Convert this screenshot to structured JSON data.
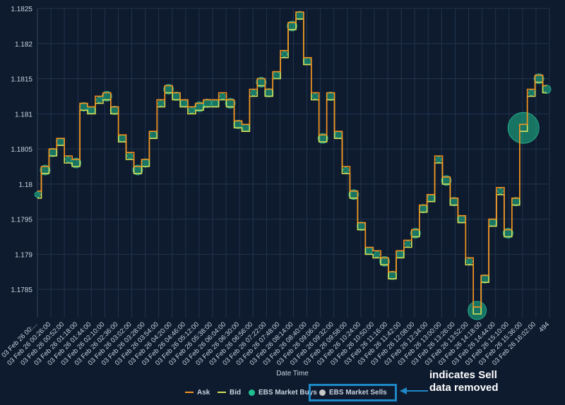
{
  "chart_data": {
    "type": "line",
    "title": "",
    "xlabel": "Date Time",
    "ylabel": "",
    "ylim": [
      1.1781,
      1.1825
    ],
    "yticks": [
      "1.1825",
      "1.182",
      "1.1815",
      "1.181",
      "1.1805",
      "1.18",
      "1.1795",
      "1.179",
      "1.1785"
    ],
    "ytick_values": [
      1.1825,
      1.182,
      1.1815,
      1.181,
      1.1805,
      1.18,
      1.1795,
      1.179,
      1.1785
    ],
    "xticks": [
      "03 Feb 26 00:...",
      "03 Feb 26 00:26:00",
      "03 Feb 26 00:52:00",
      "03 Feb 26 01:18:00",
      "03 Feb 26 01:44:00",
      "03 Feb 26 02:10:00",
      "03 Feb 26 02:36:00",
      "03 Feb 26 03:02:00",
      "03 Feb 26 03:28:00",
      "03 Feb 26 03:54:00",
      "03 Feb 26 04:20:00",
      "03 Feb 26 04:46:00",
      "03 Feb 26 05:12:00",
      "03 Feb 26 05:38:00",
      "03 Feb 26 06:04:00",
      "03 Feb 26 06:30:00",
      "03 Feb 26 06:56:00",
      "03 Feb 26 07:22:00",
      "03 Feb 26 07:48:00",
      "03 Feb 26 08:14:00",
      "03 Feb 26 08:40:00",
      "03 Feb 26 09:06:00",
      "03 Feb 26 09:32:00",
      "03 Feb 26 09:58:00",
      "03 Feb 26 10:24:00",
      "03 Feb 26 10:50:00",
      "03 Feb 26 11:16:00",
      "03 Feb 26 11:42:00",
      "03 Feb 26 12:08:00",
      "03 Feb 26 12:34:00",
      "03 Feb 26 13:00:00",
      "03 Feb 26 13:26:00",
      "03 Feb 26 13:52:00",
      "03 Feb 26 14:18:00",
      "03 Feb 26 14:44:00",
      "03 Feb 26 15:10:00",
      "03 Feb 26 15:36:00",
      "03 Feb 26 16:02:00",
      "494"
    ],
    "grid": true,
    "legend_position": "bottom",
    "series": [
      {
        "name": "Ask",
        "color": "#f7931e",
        "values": [
          1.1799,
          1.18025,
          1.1805,
          1.18065,
          1.1804,
          1.18035,
          1.18115,
          1.1811,
          1.18125,
          1.1813,
          1.1811,
          1.1807,
          1.18045,
          1.18025,
          1.18035,
          1.18075,
          1.1812,
          1.1814,
          1.1813,
          1.1812,
          1.1811,
          1.18115,
          1.1812,
          1.1812,
          1.1813,
          1.1812,
          1.1809,
          1.18085,
          1.18135,
          1.1815,
          1.18135,
          1.1816,
          1.1819,
          1.1823,
          1.18245,
          1.1818,
          1.1813,
          1.1807,
          1.1813,
          1.18075,
          1.18025,
          1.1799,
          1.17945,
          1.1791,
          1.17905,
          1.17895,
          1.17875,
          1.17905,
          1.1792,
          1.17935,
          1.1797,
          1.17985,
          1.1804,
          1.1801,
          1.1798,
          1.17955,
          1.17895,
          1.17825,
          1.1787,
          1.1795,
          1.17995,
          1.17935,
          1.1798,
          1.18085,
          1.18135,
          1.18155,
          1.1814
        ]
      },
      {
        "name": "Bid",
        "color": "#d4e157",
        "values": [
          1.1798,
          1.18015,
          1.1804,
          1.18055,
          1.1803,
          1.18025,
          1.18105,
          1.181,
          1.18115,
          1.1812,
          1.181,
          1.1806,
          1.18035,
          1.18015,
          1.18025,
          1.18065,
          1.1811,
          1.1813,
          1.1812,
          1.1811,
          1.181,
          1.18105,
          1.1811,
          1.1811,
          1.1812,
          1.1811,
          1.1808,
          1.18075,
          1.18125,
          1.1814,
          1.18125,
          1.1815,
          1.1818,
          1.1822,
          1.18235,
          1.1817,
          1.1812,
          1.1806,
          1.1812,
          1.18065,
          1.18015,
          1.1798,
          1.17935,
          1.179,
          1.17895,
          1.17885,
          1.17865,
          1.17895,
          1.1791,
          1.17925,
          1.1796,
          1.17975,
          1.1803,
          1.18,
          1.1797,
          1.17945,
          1.17885,
          1.17815,
          1.1786,
          1.1794,
          1.17985,
          1.17925,
          1.1797,
          1.18075,
          1.18125,
          1.18145,
          1.1813
        ]
      },
      {
        "name": "EBS Market Buys",
        "color": "#1fbf8f"
      },
      {
        "name": "EBS Market Sells",
        "color": "#c8c8c8"
      }
    ]
  },
  "legend": {
    "ask": "Ask",
    "bid": "Bid",
    "buys": "EBS Market Buys",
    "sells": "EBS Market Sells"
  },
  "annotation": {
    "text": "indicates Sell\ndata removed"
  },
  "colors": {
    "background": "#0e1a2e",
    "grid": "#22344d",
    "ask": "#f7931e",
    "bid": "#d4e157",
    "buys": "#1fbf8f",
    "sells": "#c8c8c8",
    "highlight": "#1e88c7"
  }
}
